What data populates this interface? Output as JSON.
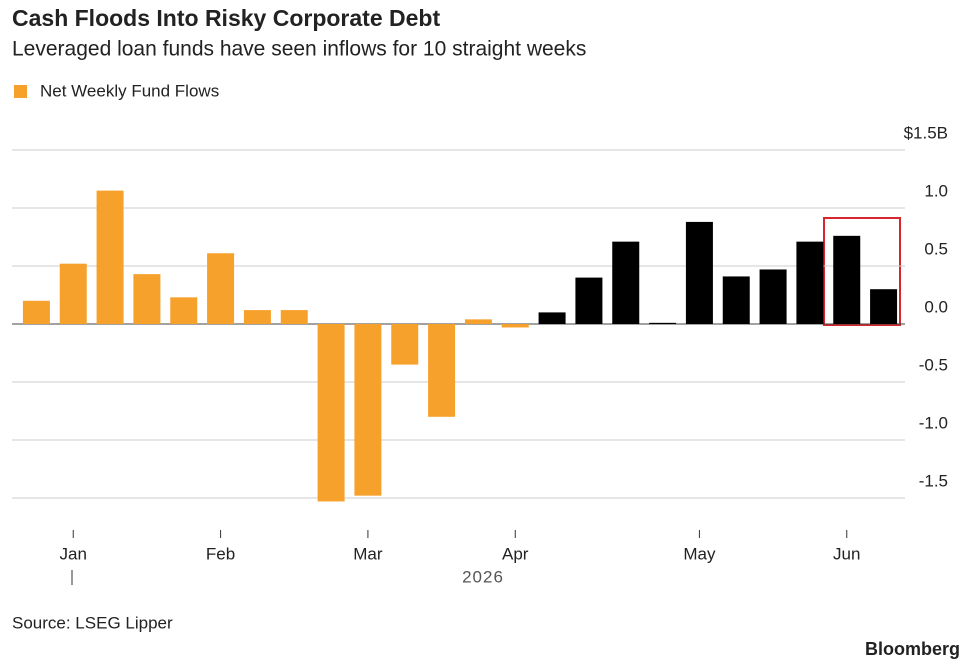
{
  "chart_data": {
    "type": "bar",
    "title": "Cash Floods Into Risky Corporate Debt",
    "subtitle": "Leveraged loan funds have seen inflows for 10 straight weeks",
    "legend": "Net Weekly Fund Flows",
    "legend_color": "#f7a12d",
    "categories": [
      null,
      null,
      null,
      null,
      null,
      null,
      null,
      null,
      null,
      null,
      null,
      null,
      null,
      null,
      null,
      null,
      null,
      null,
      null,
      null,
      null,
      null,
      null,
      null
    ],
    "values": [
      0.2,
      0.52,
      1.15,
      0.43,
      0.23,
      0.61,
      0.12,
      0.12,
      -1.53,
      -1.48,
      -0.35,
      -0.8,
      0.04,
      -0.03,
      0.1,
      0.4,
      0.71,
      0.01,
      0.88,
      0.41,
      0.47,
      0.71,
      0.76,
      0.3
    ],
    "colors": [
      "#f7a12d",
      "#f7a12d",
      "#f7a12d",
      "#f7a12d",
      "#f7a12d",
      "#f7a12d",
      "#f7a12d",
      "#f7a12d",
      "#f7a12d",
      "#f7a12d",
      "#f7a12d",
      "#f7a12d",
      "#f7a12d",
      "#f7a12d",
      "#000000",
      "#000000",
      "#000000",
      "#000000",
      "#000000",
      "#000000",
      "#000000",
      "#000000",
      "#000000",
      "#000000"
    ],
    "xticks": [
      {
        "value": 1,
        "label": "Jan"
      },
      {
        "value": 5,
        "label": "Feb"
      },
      {
        "value": 9,
        "label": "Mar"
      },
      {
        "value": 13,
        "label": "Apr"
      },
      {
        "value": 18,
        "label": "May"
      },
      {
        "value": 22,
        "label": "Jun"
      }
    ],
    "x_label": "2026",
    "ylim": [
      -1.6,
      1.5
    ],
    "yticks": [
      {
        "value": 1.5,
        "label": "$1.5B"
      },
      {
        "value": 1,
        "label": "1.0"
      },
      0.5,
      {
        "value": 0,
        "label": "0.0"
      },
      -0.5,
      {
        "value": -1,
        "label": "-1.0"
      },
      -1.5
    ],
    "grid": true,
    "source": "Source: LSEG Lipper",
    "brand": "Bloomberg"
  }
}
